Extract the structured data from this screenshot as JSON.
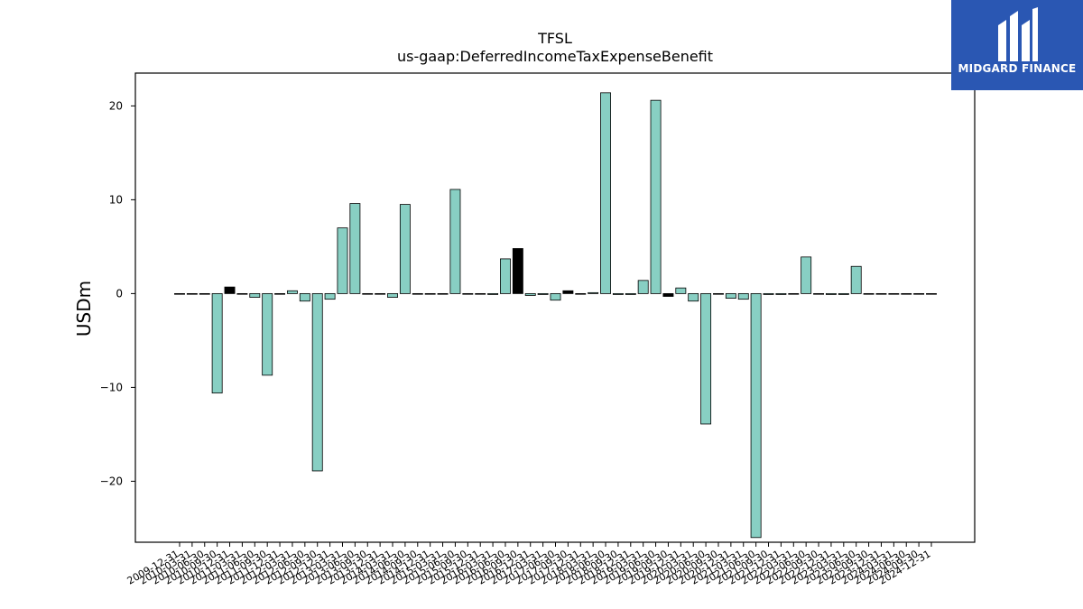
{
  "brand": {
    "name": "MIDGARD FINANCE",
    "bg_color": "#2a57b3",
    "logo_icon": "midgard-mh-monogram-icon"
  },
  "chart_data": {
    "type": "bar",
    "title": "TFSL",
    "subtitle": "us-gaap:DeferredIncomeTaxExpenseBenefit",
    "xlabel": "",
    "ylabel": "USDm",
    "ylim": [
      -26.5,
      23.5
    ],
    "yticks": [
      -20,
      -10,
      0,
      10,
      20
    ],
    "grid": false,
    "legend": "none",
    "colors": {
      "default": "#88cfc3",
      "highlight": "#000000",
      "edge": "#000000"
    },
    "categories": [
      "2009-12-31",
      "2010-03-31",
      "2010-06-30",
      "2010-09-30",
      "2010-12-31",
      "2011-03-31",
      "2011-06-30",
      "2011-09-30",
      "2011-12-31",
      "2012-03-31",
      "2012-06-30",
      "2012-09-30",
      "2012-12-31",
      "2013-03-31",
      "2013-06-30",
      "2013-09-30",
      "2013-12-31",
      "2014-03-31",
      "2014-06-30",
      "2014-09-30",
      "2014-12-31",
      "2015-03-31",
      "2015-06-30",
      "2015-09-30",
      "2015-12-31",
      "2016-03-31",
      "2016-06-30",
      "2016-09-30",
      "2016-12-31",
      "2017-03-31",
      "2017-06-30",
      "2017-09-30",
      "2017-12-31",
      "2018-03-31",
      "2018-06-30",
      "2018-09-30",
      "2018-12-31",
      "2019-03-31",
      "2019-06-30",
      "2019-09-30",
      "2019-12-31",
      "2020-03-31",
      "2020-06-30",
      "2020-09-30",
      "2020-12-31",
      "2021-03-31",
      "2021-06-30",
      "2021-09-30",
      "2021-12-31",
      "2022-03-31",
      "2022-06-30",
      "2022-09-30",
      "2022-12-31",
      "2023-03-31",
      "2023-06-30",
      "2023-09-30",
      "2023-12-31",
      "2024-03-31",
      "2024-06-30",
      "2024-09-30",
      "2024-12-31"
    ],
    "values": [
      0.0,
      0.0,
      0.0,
      -10.6,
      0.7,
      0.0,
      -0.4,
      -8.7,
      0.0,
      0.3,
      -0.8,
      -18.9,
      -0.6,
      7.0,
      9.6,
      0.0,
      0.0,
      -0.4,
      9.5,
      0.0,
      0.0,
      0.0,
      11.1,
      0.0,
      0.0,
      -0.1,
      3.7,
      4.8,
      -0.2,
      -0.1,
      -0.7,
      0.3,
      0.0,
      0.1,
      21.4,
      -0.1,
      -0.1,
      1.4,
      20.6,
      -0.3,
      0.6,
      -0.8,
      -13.9,
      0.0,
      -0.5,
      -0.6,
      -26.0,
      -0.1,
      -0.1,
      0.0,
      3.9,
      0.0,
      -0.1,
      -0.1,
      2.9,
      0.0,
      0.0,
      0.0,
      0.0,
      0.0,
      0.0
    ],
    "highlight_indices": [
      4,
      27,
      31,
      39
    ]
  }
}
